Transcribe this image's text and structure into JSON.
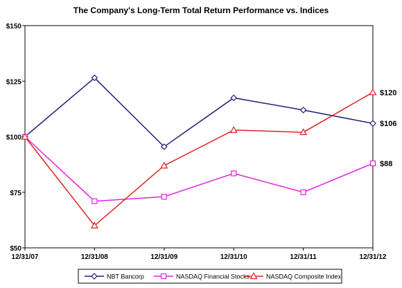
{
  "chart_data": {
    "type": "line",
    "title": "The Company's Long-Term Total Return Performance vs. Indices",
    "categories": [
      "12/31/07",
      "12/31/08",
      "12/31/09",
      "12/31/10",
      "12/31/11",
      "12/31/12"
    ],
    "y_ticks": [
      "$50",
      "$75",
      "$100",
      "$125",
      "$150"
    ],
    "ylim": [
      50,
      150
    ],
    "grid": false,
    "legend_position": "bottom",
    "series": [
      {
        "name": "NBT Bancorp",
        "values": [
          100,
          126.5,
          95.5,
          117.5,
          112,
          106
        ],
        "color": "#1f1f7a",
        "marker": "diamond",
        "end_label": "$106"
      },
      {
        "name": "NASDAQ Financial Stocks",
        "values": [
          100,
          71,
          73,
          83.5,
          75,
          88
        ],
        "color": "#e020e0",
        "marker": "square",
        "end_label": "$88"
      },
      {
        "name": "NASDAQ Composite Index",
        "values": [
          100,
          60,
          87,
          103,
          102,
          120
        ],
        "color": "#e02020",
        "marker": "triangle",
        "end_label": "$120"
      }
    ]
  }
}
